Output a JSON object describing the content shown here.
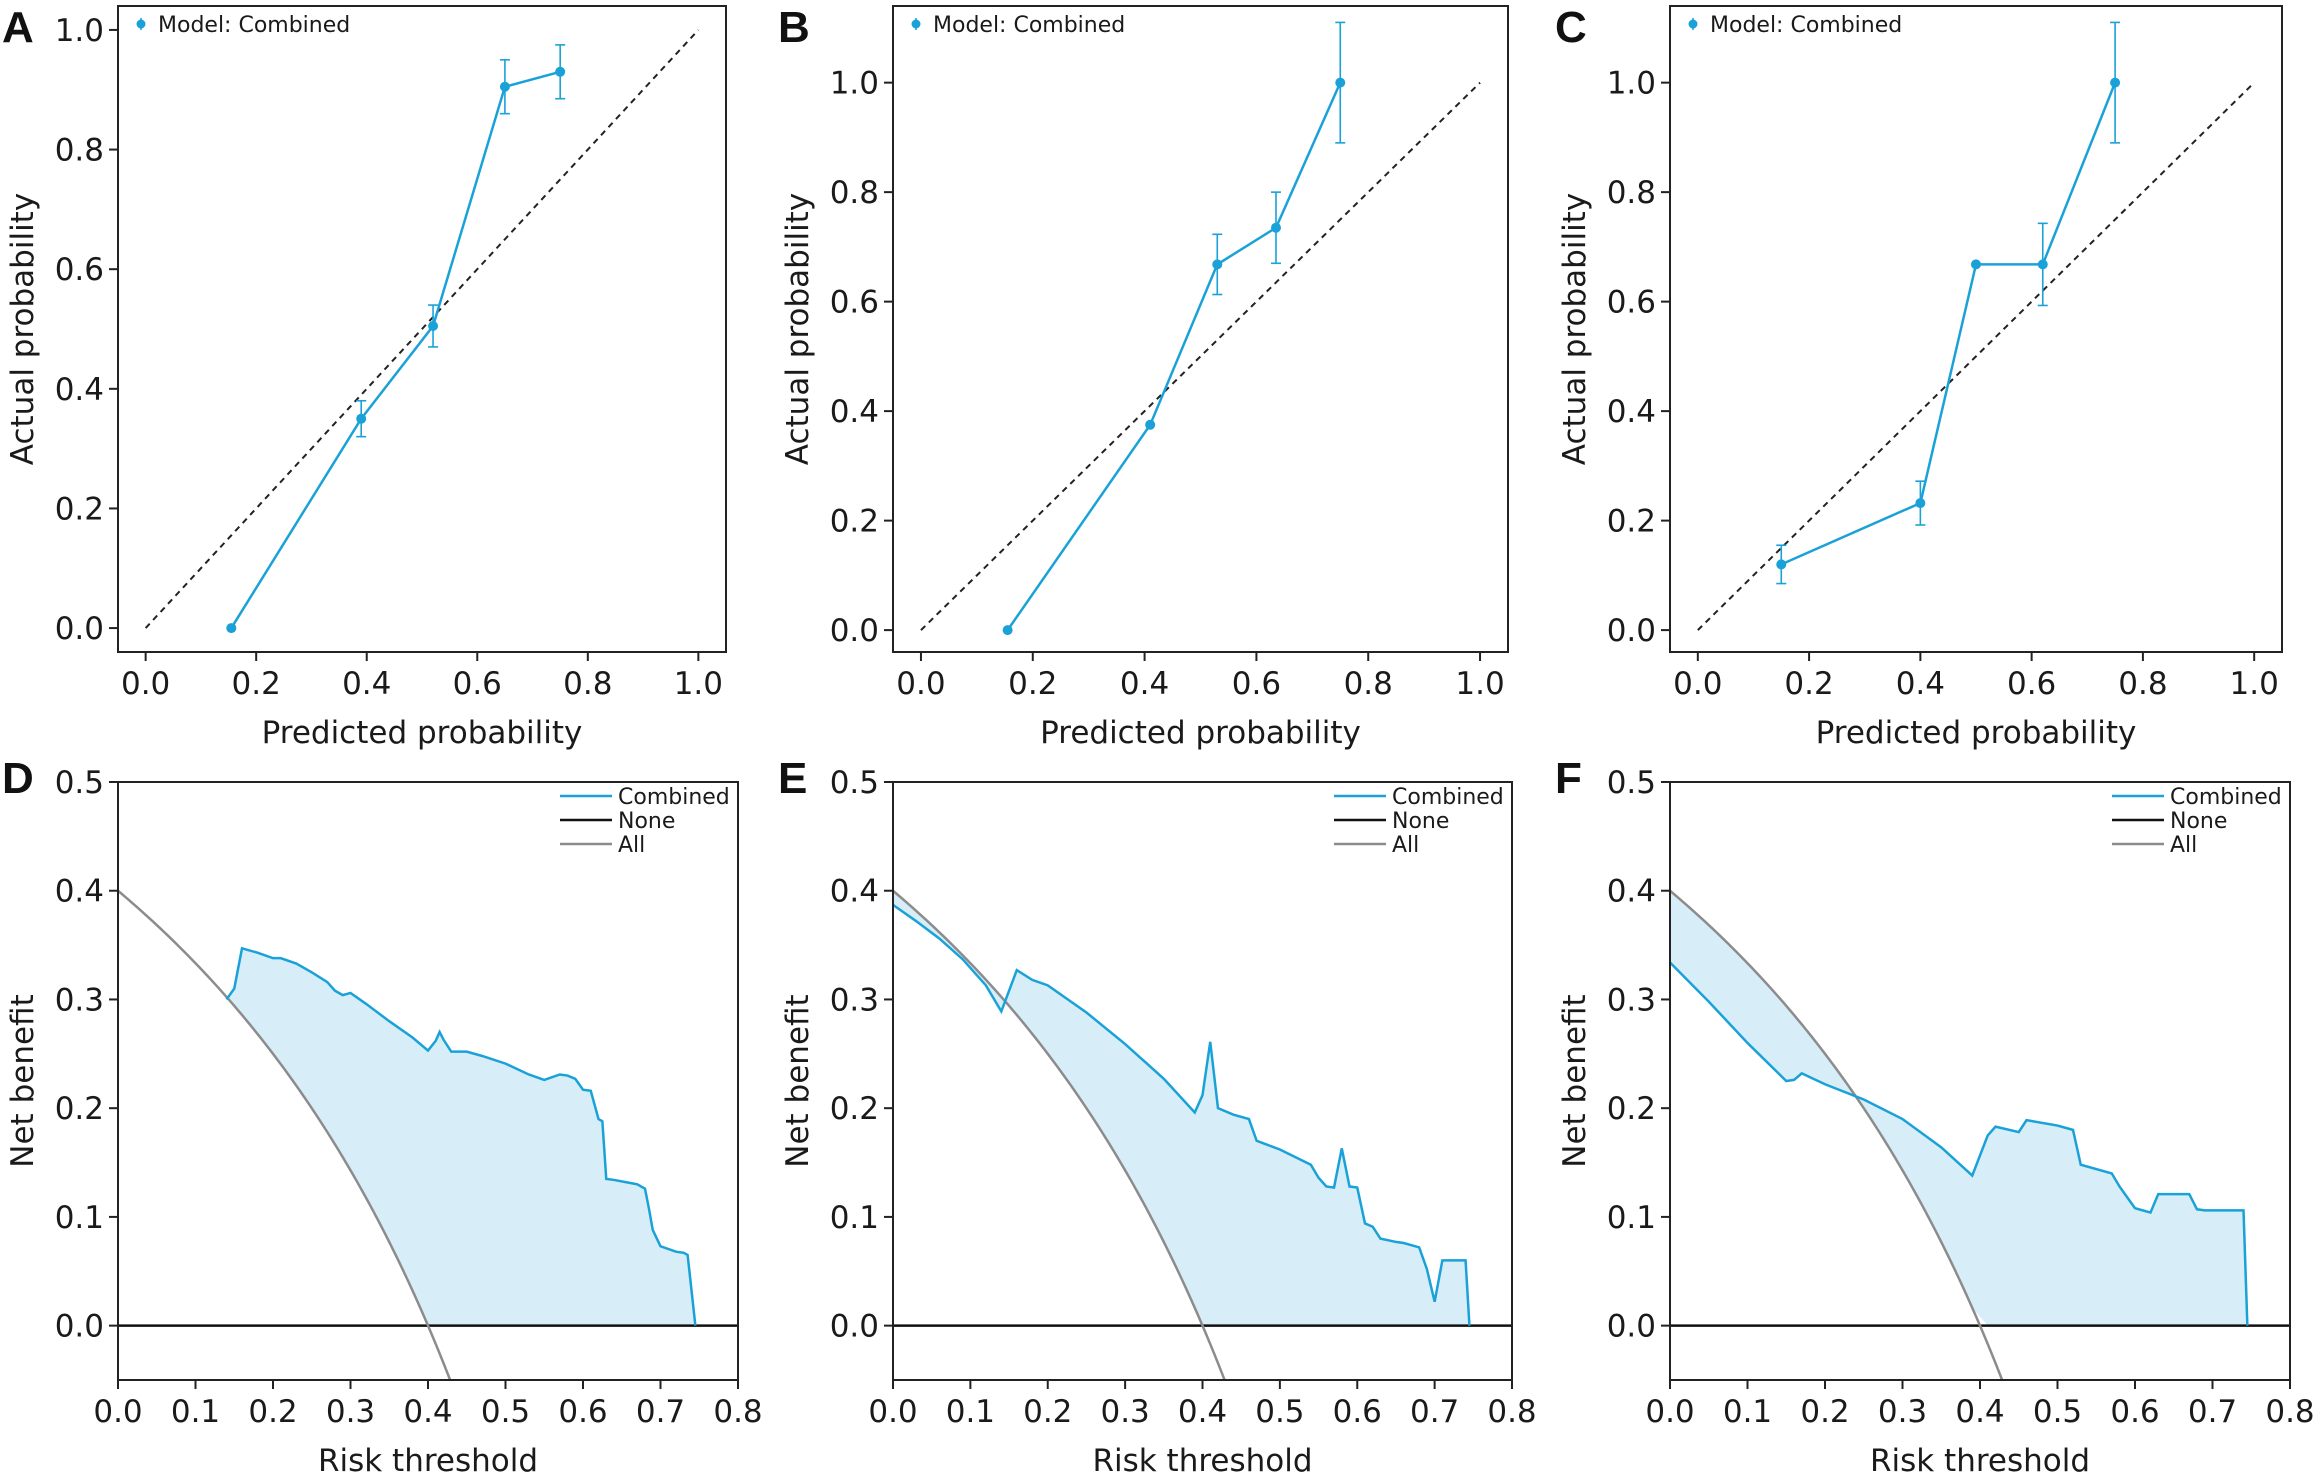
{
  "colors": {
    "series": "#1aa2d8",
    "fill": "#d7eef8",
    "none": "#111111",
    "all": "#8c8c8c",
    "diagonal": "#222222"
  },
  "chart_data": [
    {
      "panel": "A",
      "type": "line",
      "legend": "Model: Combined",
      "legend_position": "top-left",
      "xlabel": "Predicted probability",
      "ylabel": "Actual probability",
      "xlim": [
        -0.05,
        1.05
      ],
      "ylim": [
        -0.04,
        1.04
      ],
      "xticks": [
        "0.0",
        "0.2",
        "0.4",
        "0.6",
        "0.8",
        "1.0"
      ],
      "yticks": [
        "0.0",
        "0.2",
        "0.4",
        "0.6",
        "0.8",
        "1.0"
      ],
      "reference_line": "ideal y = x (dashed)",
      "series": [
        {
          "x": [
            0.155,
            0.39,
            0.52,
            0.65,
            0.75
          ],
          "y": [
            0.0,
            0.35,
            0.505,
            0.905,
            0.93
          ],
          "yerr": [
            0.0,
            0.03,
            0.035,
            0.045,
            0.045
          ]
        }
      ]
    },
    {
      "panel": "B",
      "type": "line",
      "legend": "Model: Combined",
      "legend_position": "top-left",
      "xlabel": "Predicted probability",
      "ylabel": "Actual probability",
      "xlim": [
        -0.05,
        1.05
      ],
      "ylim": [
        -0.04,
        1.14
      ],
      "xticks": [
        "0.0",
        "0.2",
        "0.4",
        "0.6",
        "0.8",
        "1.0"
      ],
      "yticks": [
        "0.0",
        "0.2",
        "0.4",
        "0.6",
        "0.8",
        "1.0"
      ],
      "reference_line": "ideal y = x (dashed)",
      "series": [
        {
          "x": [
            0.155,
            0.41,
            0.53,
            0.635,
            0.75
          ],
          "y": [
            0.0,
            0.375,
            0.668,
            0.735,
            1.0
          ],
          "yerr": [
            0.0,
            0.0,
            0.055,
            0.065,
            0.11
          ]
        }
      ]
    },
    {
      "panel": "C",
      "type": "line",
      "legend": "Model: Combined",
      "legend_position": "top-left",
      "xlabel": "Predicted probability",
      "ylabel": "Actual probability",
      "xlim": [
        -0.05,
        1.05
      ],
      "ylim": [
        -0.04,
        1.14
      ],
      "xticks": [
        "0.0",
        "0.2",
        "0.4",
        "0.6",
        "0.8",
        "1.0"
      ],
      "yticks": [
        "0.0",
        "0.2",
        "0.4",
        "0.6",
        "0.8",
        "1.0"
      ],
      "reference_line": "ideal y = x (dashed)",
      "series": [
        {
          "x": [
            0.15,
            0.4,
            0.5,
            0.62,
            0.75
          ],
          "y": [
            0.12,
            0.232,
            0.668,
            0.668,
            1.0
          ],
          "yerr": [
            0.035,
            0.04,
            0.0,
            0.075,
            0.11
          ]
        }
      ]
    },
    {
      "panel": "D",
      "type": "area",
      "xlabel": "Risk threshold",
      "ylabel": "Net benefit",
      "xlim": [
        0.0,
        0.8
      ],
      "ylim": [
        -0.05,
        0.5
      ],
      "xticks": [
        "0.0",
        "0.1",
        "0.2",
        "0.3",
        "0.4",
        "0.5",
        "0.6",
        "0.7",
        "0.8"
      ],
      "yticks": [
        "0.0",
        "0.1",
        "0.2",
        "0.3",
        "0.4",
        "0.5"
      ],
      "legend_position": "top-right",
      "legend": [
        "Combined",
        "None",
        "All"
      ],
      "prevalence": 0.4,
      "combined": {
        "x": [
          0.14,
          0.15,
          0.16,
          0.18,
          0.2,
          0.21,
          0.23,
          0.25,
          0.27,
          0.28,
          0.29,
          0.3,
          0.32,
          0.35,
          0.38,
          0.4,
          0.41,
          0.415,
          0.42,
          0.43,
          0.45,
          0.47,
          0.5,
          0.53,
          0.55,
          0.57,
          0.58,
          0.59,
          0.6,
          0.61,
          0.62,
          0.625,
          0.63,
          0.64,
          0.67,
          0.68,
          0.685,
          0.69,
          0.7,
          0.72,
          0.73,
          0.735,
          0.745
        ],
        "y": [
          0.3,
          0.31,
          0.347,
          0.343,
          0.338,
          0.338,
          0.333,
          0.325,
          0.316,
          0.308,
          0.304,
          0.306,
          0.296,
          0.28,
          0.265,
          0.253,
          0.262,
          0.27,
          0.263,
          0.252,
          0.252,
          0.248,
          0.241,
          0.231,
          0.226,
          0.231,
          0.23,
          0.227,
          0.217,
          0.216,
          0.19,
          0.188,
          0.135,
          0.134,
          0.13,
          0.126,
          0.108,
          0.088,
          0.073,
          0.068,
          0.067,
          0.065,
          0.0
        ]
      }
    },
    {
      "panel": "E",
      "type": "area",
      "xlabel": "Risk threshold",
      "ylabel": "Net benefit",
      "xlim": [
        0.0,
        0.8
      ],
      "ylim": [
        -0.05,
        0.5
      ],
      "xticks": [
        "0.0",
        "0.1",
        "0.2",
        "0.3",
        "0.4",
        "0.5",
        "0.6",
        "0.7",
        "0.8"
      ],
      "yticks": [
        "0.0",
        "0.1",
        "0.2",
        "0.3",
        "0.4",
        "0.5"
      ],
      "legend_position": "top-right",
      "legend": [
        "Combined",
        "None",
        "All"
      ],
      "prevalence": 0.4,
      "combined": {
        "x": [
          0.0,
          0.03,
          0.06,
          0.09,
          0.12,
          0.14,
          0.16,
          0.18,
          0.2,
          0.25,
          0.3,
          0.35,
          0.39,
          0.4,
          0.41,
          0.42,
          0.44,
          0.46,
          0.47,
          0.5,
          0.54,
          0.55,
          0.56,
          0.57,
          0.58,
          0.59,
          0.6,
          0.61,
          0.62,
          0.63,
          0.65,
          0.66,
          0.68,
          0.69,
          0.7,
          0.71,
          0.72,
          0.73,
          0.74,
          0.745
        ],
        "y": [
          0.387,
          0.372,
          0.356,
          0.337,
          0.313,
          0.289,
          0.327,
          0.318,
          0.313,
          0.288,
          0.259,
          0.227,
          0.196,
          0.212,
          0.261,
          0.2,
          0.194,
          0.19,
          0.17,
          0.162,
          0.148,
          0.136,
          0.128,
          0.127,
          0.163,
          0.128,
          0.127,
          0.094,
          0.091,
          0.08,
          0.077,
          0.076,
          0.072,
          0.052,
          0.022,
          0.06,
          0.06,
          0.06,
          0.06,
          0.0
        ]
      }
    },
    {
      "panel": "F",
      "type": "area",
      "xlabel": "Risk threshold",
      "ylabel": "Net benefit",
      "xlim": [
        0.0,
        0.8
      ],
      "ylim": [
        -0.05,
        0.5
      ],
      "xticks": [
        "0.0",
        "0.1",
        "0.2",
        "0.3",
        "0.4",
        "0.5",
        "0.6",
        "0.7",
        "0.8"
      ],
      "yticks": [
        "0.0",
        "0.1",
        "0.2",
        "0.3",
        "0.4",
        "0.5"
      ],
      "legend_position": "top-right",
      "legend": [
        "Combined",
        "None",
        "All"
      ],
      "prevalence": 0.4,
      "combined": {
        "x": [
          0.0,
          0.05,
          0.1,
          0.15,
          0.16,
          0.17,
          0.2,
          0.25,
          0.3,
          0.35,
          0.39,
          0.41,
          0.42,
          0.45,
          0.46,
          0.5,
          0.51,
          0.52,
          0.53,
          0.57,
          0.58,
          0.59,
          0.6,
          0.61,
          0.62,
          0.63,
          0.64,
          0.65,
          0.66,
          0.67,
          0.68,
          0.69,
          0.7,
          0.71,
          0.72,
          0.73,
          0.74,
          0.745
        ],
        "y": [
          0.334,
          0.298,
          0.26,
          0.225,
          0.226,
          0.232,
          0.222,
          0.208,
          0.19,
          0.164,
          0.138,
          0.175,
          0.183,
          0.178,
          0.189,
          0.184,
          0.182,
          0.18,
          0.148,
          0.14,
          0.128,
          0.118,
          0.108,
          0.106,
          0.104,
          0.121,
          0.121,
          0.121,
          0.121,
          0.121,
          0.107,
          0.106,
          0.106,
          0.106,
          0.106,
          0.106,
          0.106,
          0.0
        ]
      }
    }
  ]
}
